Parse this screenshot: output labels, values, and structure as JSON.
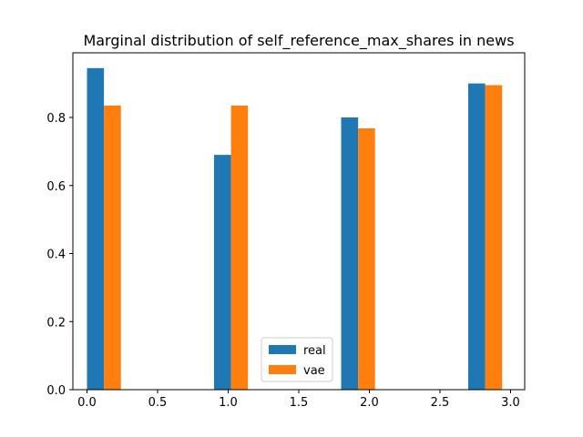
{
  "chart_data": {
    "type": "bar",
    "title": "Marginal distribution of self_reference_max_shares in news",
    "xlabel": "",
    "ylabel": "",
    "x": [
      0,
      0.9,
      1.8,
      2.7
    ],
    "bar_width": 0.12,
    "xlim": [
      -0.1,
      3.1
    ],
    "ylim": [
      0,
      0.99
    ],
    "xticks": [
      0.0,
      0.5,
      1.0,
      1.5,
      2.0,
      2.5,
      3.0
    ],
    "xtick_labels": [
      "0.0",
      "0.5",
      "1.0",
      "1.5",
      "2.0",
      "2.5",
      "3.0"
    ],
    "yticks": [
      0.0,
      0.2,
      0.4,
      0.6,
      0.8
    ],
    "ytick_labels": [
      "0.0",
      "0.2",
      "0.4",
      "0.6",
      "0.8"
    ],
    "series": [
      {
        "name": "real",
        "color": "#1f77b4",
        "values": [
          0.945,
          0.69,
          0.8,
          0.9
        ]
      },
      {
        "name": "vae",
        "color": "#ff7f0e",
        "values": [
          0.835,
          0.835,
          0.768,
          0.895
        ]
      }
    ],
    "grid": false,
    "legend": "lower-center"
  }
}
